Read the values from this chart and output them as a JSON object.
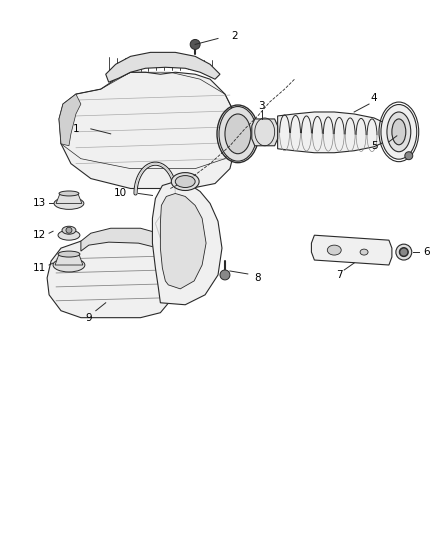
{
  "bg_color": "#ffffff",
  "fig_width": 4.38,
  "fig_height": 5.33,
  "dpi": 100,
  "line_color": "#2a2a2a",
  "part_fill": "#f0f0f0",
  "part_fill2": "#e0e0e0",
  "part_fill3": "#d0d0d0",
  "label_fs": 7.5,
  "lw": 0.8
}
